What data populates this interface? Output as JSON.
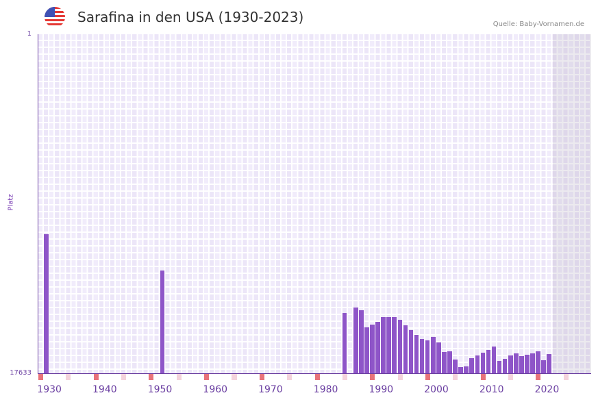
{
  "header": {
    "title": "Sarafina in den USA (1930-2023)",
    "source": "Quelle: Baby-Vornamen.de",
    "flag_icon": "us-flag-icon"
  },
  "colors": {
    "bar": "#8e55c8",
    "marker_decade": "#e8737b",
    "marker_half": "#f4d3dc",
    "axis": "#6a3ea1"
  },
  "chart_data": {
    "type": "bar",
    "title": "Sarafina in den USA (1930-2023)",
    "xlabel": "",
    "ylabel": "Platz",
    "ylim": [
      1,
      17633
    ],
    "y_inverted": true,
    "y_ticks": [
      "1",
      "17633"
    ],
    "xlim": [
      1930,
      2029
    ],
    "x_ticks": [
      "1930",
      "1940",
      "1950",
      "1960",
      "1970",
      "1980",
      "1990",
      "2000",
      "2010",
      "2020"
    ],
    "shaded_from": 2023,
    "points": [
      {
        "year": 1931,
        "rank": 10402
      },
      {
        "year": 1952,
        "rank": 12289
      },
      {
        "year": 1985,
        "rank": 14487
      },
      {
        "year": 1987,
        "rank": 14212
      },
      {
        "year": 1988,
        "rank": 14355
      },
      {
        "year": 1989,
        "rank": 15245
      },
      {
        "year": 1990,
        "rank": 15092
      },
      {
        "year": 1991,
        "rank": 14960
      },
      {
        "year": 1992,
        "rank": 14711
      },
      {
        "year": 1993,
        "rank": 14711
      },
      {
        "year": 1994,
        "rank": 14711
      },
      {
        "year": 1995,
        "rank": 14854
      },
      {
        "year": 1996,
        "rank": 15127
      },
      {
        "year": 1997,
        "rank": 15388
      },
      {
        "year": 1998,
        "rank": 15637
      },
      {
        "year": 1999,
        "rank": 15851
      },
      {
        "year": 2000,
        "rank": 15922
      },
      {
        "year": 2001,
        "rank": 15744
      },
      {
        "year": 2002,
        "rank": 16029
      },
      {
        "year": 2003,
        "rank": 16528
      },
      {
        "year": 2004,
        "rank": 16492
      },
      {
        "year": 2005,
        "rank": 16920
      },
      {
        "year": 2006,
        "rank": 17311
      },
      {
        "year": 2007,
        "rank": 17276
      },
      {
        "year": 2008,
        "rank": 16848
      },
      {
        "year": 2009,
        "rank": 16706
      },
      {
        "year": 2010,
        "rank": 16563
      },
      {
        "year": 2011,
        "rank": 16421
      },
      {
        "year": 2012,
        "rank": 16243
      },
      {
        "year": 2013,
        "rank": 16991
      },
      {
        "year": 2014,
        "rank": 16884
      },
      {
        "year": 2015,
        "rank": 16706
      },
      {
        "year": 2016,
        "rank": 16599
      },
      {
        "year": 2017,
        "rank": 16742
      },
      {
        "year": 2018,
        "rank": 16670
      },
      {
        "year": 2019,
        "rank": 16599
      },
      {
        "year": 2020,
        "rank": 16492
      },
      {
        "year": 2021,
        "rank": 16955
      },
      {
        "year": 2022,
        "rank": 16635
      }
    ]
  }
}
